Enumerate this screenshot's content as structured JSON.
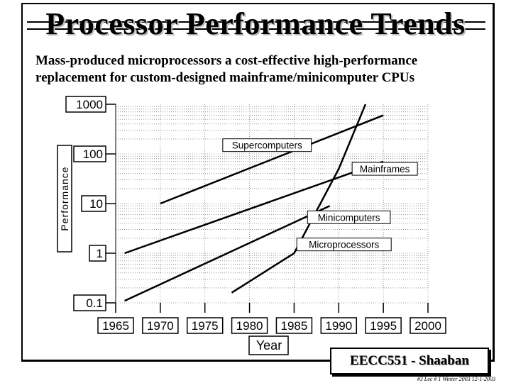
{
  "slide": {
    "title": "Processor Performance Trends",
    "subtitle_line1": "Mass-produced microprocessors a cost-effective high-performance",
    "subtitle_line2": "replacement for custom-designed mainframe/minicomputer CPUs",
    "footer": "EECC551 - Shaaban",
    "footnote": "#3   Lec # 1  Winter 2003   12-1-2003"
  },
  "chart_data": {
    "type": "line",
    "xlabel": "Year",
    "ylabel": "Performance",
    "xlim": [
      1965,
      2000
    ],
    "ylim": [
      0.1,
      1000
    ],
    "yscale": "log",
    "x_ticks": [
      "1965",
      "1970",
      "1975",
      "1980",
      "1985",
      "1990",
      "1995",
      "2000"
    ],
    "y_ticks": [
      "1000",
      "100",
      "10",
      "1",
      "0.1"
    ],
    "grid": true,
    "series": [
      {
        "name": "Supercomputers",
        "x": [
          1970,
          1995
        ],
        "y": [
          10,
          600
        ],
        "label_at": [
          1977,
          150
        ]
      },
      {
        "name": "Mainframes",
        "x": [
          1966,
          1995
        ],
        "y": [
          1,
          70
        ],
        "label_at": [
          1991.5,
          50
        ]
      },
      {
        "name": "Minicomputers",
        "x": [
          1966,
          1989
        ],
        "y": [
          0.11,
          9
        ],
        "label_at": [
          1986.5,
          5.3
        ]
      },
      {
        "name": "Microprocessors",
        "x": [
          1978,
          1985,
          1990,
          1993
        ],
        "y": [
          0.16,
          1,
          50,
          1000
        ],
        "label_at": [
          1985.3,
          1.5
        ]
      }
    ]
  }
}
